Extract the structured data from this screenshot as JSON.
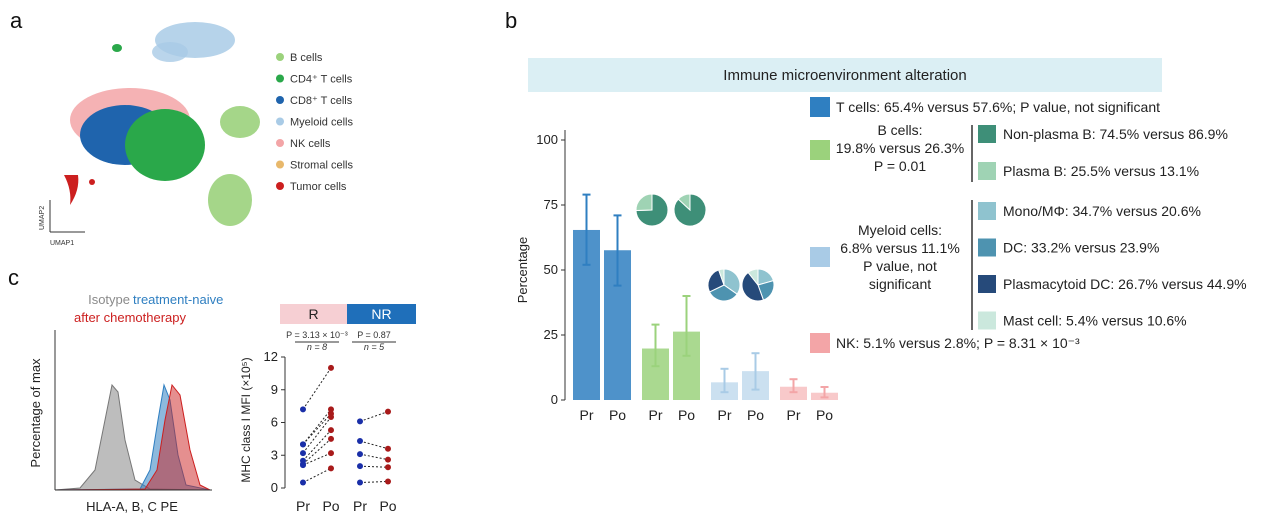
{
  "panels": {
    "a": "a",
    "b": "b",
    "c": "c"
  },
  "umap": {
    "xlabel": "UMAP1",
    "ylabel": "UMAP2",
    "legend": [
      {
        "label": "B cells",
        "color": "#9bd27c"
      },
      {
        "label": "CD4⁺ T cells",
        "color": "#2aa84a"
      },
      {
        "label": "CD8⁺ T cells",
        "color": "#1f64ad"
      },
      {
        "label": "Myeloid cells",
        "color": "#a9cbe6"
      },
      {
        "label": "NK cells",
        "color": "#f3a5a7"
      },
      {
        "label": "Stromal cells",
        "color": "#e8b86b"
      },
      {
        "label": "Tumor cells",
        "color": "#cc1f1f"
      }
    ]
  },
  "chart_data": [
    {
      "type": "bar",
      "title": "Immune microenvironment alteration",
      "ylabel": "Percentage",
      "ylim": [
        0,
        100
      ],
      "yticks": [
        0,
        25,
        50,
        75,
        100
      ],
      "categories": [
        "Pr",
        "Po",
        "Pr",
        "Po",
        "Pr",
        "Po",
        "Pr",
        "Po"
      ],
      "groups": [
        {
          "name": "T cells",
          "color": "#2f7fc1",
          "values": [
            65.4,
            57.6
          ],
          "err": [
            [
              52,
              79
            ],
            [
              44,
              71
            ]
          ]
        },
        {
          "name": "B cells",
          "color": "#9bd27c",
          "values": [
            19.8,
            26.3
          ],
          "err": [
            [
              13,
              29
            ],
            [
              17,
              40
            ]
          ]
        },
        {
          "name": "Myeloid cells",
          "color": "#a9cbe6",
          "values": [
            6.8,
            11.1
          ],
          "err": [
            [
              3,
              12
            ],
            [
              4,
              18
            ]
          ]
        },
        {
          "name": "NK",
          "color": "#f3a5a7",
          "values": [
            5.1,
            2.8
          ],
          "err": [
            [
              3,
              8
            ],
            [
              1,
              5
            ]
          ]
        }
      ],
      "pies": [
        {
          "group": "B cells",
          "slices": [
            {
              "label": "Non-plasma B",
              "value": 74.5
            },
            {
              "label": "Plasma B",
              "value": 25.5
            }
          ]
        },
        {
          "group": "B cells",
          "slices": [
            {
              "label": "Non-plasma B",
              "value": 86.9
            },
            {
              "label": "Plasma B",
              "value": 13.1
            }
          ]
        },
        {
          "group": "Myeloid cells",
          "slices": [
            {
              "label": "Mono/MΦ",
              "value": 34.7
            },
            {
              "label": "DC",
              "value": 33.2
            },
            {
              "label": "Plasmacytoid DC",
              "value": 26.7
            },
            {
              "label": "Mast cell",
              "value": 5.4
            }
          ]
        },
        {
          "group": "Myeloid cells",
          "slices": [
            {
              "label": "Mono/MΦ",
              "value": 20.6
            },
            {
              "label": "DC",
              "value": 23.9
            },
            {
              "label": "Plasmacytoid DC",
              "value": 44.9
            },
            {
              "label": "Mast cell",
              "value": 10.6
            }
          ]
        }
      ],
      "legend": [
        {
          "label": "T cells: 65.4% versus 57.6%; P value, not significant",
          "color": "#2f7fc1"
        },
        {
          "label": "NK: 5.1% versus 2.8%; P = 8.31 × 10⁻³",
          "color": "#f3a5a7"
        }
      ],
      "b_group": {
        "lines": [
          "B cells:",
          "19.8% versus 26.3%",
          "P = 0.01"
        ],
        "color": "#9bd27c",
        "sub": [
          {
            "label": "Non-plasma B: 74.5% versus 86.9%",
            "color": "#3e8f78"
          },
          {
            "label": "Plasma B: 25.5% versus 13.1%",
            "color": "#9fd3b4"
          }
        ]
      },
      "myeloid_group": {
        "lines": [
          "Myeloid cells:",
          "6.8% versus 11.1%",
          "P value, not",
          "significant"
        ],
        "color": "#a9cbe6",
        "sub": [
          {
            "label": "Mono/MΦ: 34.7% versus 20.6%",
            "color": "#8fc3cf"
          },
          {
            "label": "DC: 33.2% versus 23.9%",
            "color": "#4e93b0"
          },
          {
            "label": "Plasmacytoid DC: 26.7% versus 44.9%",
            "color": "#264a7a"
          },
          {
            "label": "Mast cell: 5.4% versus 10.6%",
            "color": "#cbe8dd"
          }
        ]
      }
    },
    {
      "type": "line",
      "ylabel": "MHC class I MFI (×10⁵)",
      "ylim": [
        0,
        12
      ],
      "yticks": [
        0,
        3,
        6,
        9,
        12
      ],
      "categories": [
        "Pr",
        "Po",
        "Pr",
        "Po"
      ],
      "groups": [
        {
          "name": "R",
          "color": "#f6cfd3",
          "stat": "P = 3.13 × 10⁻³",
          "n": "n = 8",
          "pairs": [
            [
              7.2,
              11.0
            ],
            [
              4.0,
              7.2
            ],
            [
              4.0,
              6.8
            ],
            [
              3.2,
              6.5
            ],
            [
              2.5,
              5.3
            ],
            [
              2.2,
              4.5
            ],
            [
              2.1,
              3.2
            ],
            [
              0.5,
              1.8
            ]
          ]
        },
        {
          "name": "NR",
          "color": "#1f6fba",
          "stat": "P = 0.87",
          "n": "n = 5",
          "pairs": [
            [
              6.1,
              7.0
            ],
            [
              4.3,
              3.6
            ],
            [
              3.1,
              2.6
            ],
            [
              2.0,
              1.9
            ],
            [
              0.5,
              0.6
            ]
          ]
        }
      ]
    },
    {
      "type": "area",
      "ylabel": "Percentage of max",
      "xlabel": "HLA-A, B, C PE",
      "legend": [
        {
          "label": "Isotype",
          "color": "#8a8a8a"
        },
        {
          "label": "treatment-naive",
          "color": "#2f7fc1"
        },
        {
          "label": "after chemotherapy",
          "color": "#cc1f1f"
        }
      ]
    }
  ]
}
